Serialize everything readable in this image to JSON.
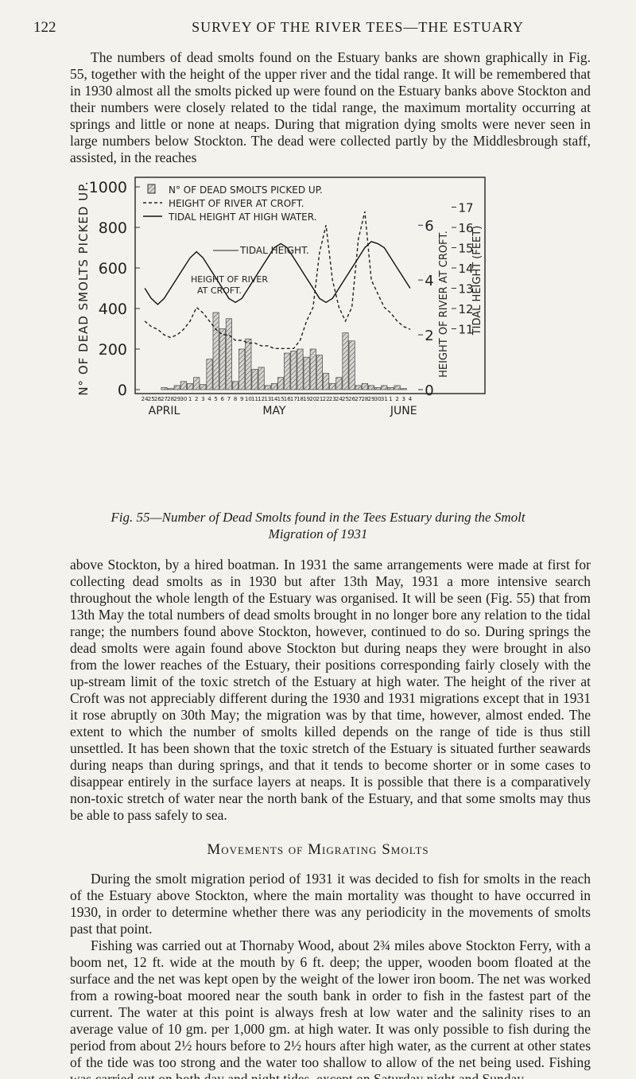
{
  "header": {
    "page": 122,
    "title": "SURVEY OF THE RIVER TEES—THE ESTUARY"
  },
  "paragraphs_before": [
    "The numbers of dead smolts found on the Estuary banks are shown graphically in Fig. 55, together with the height of the upper river and the tidal range. It will be remembered that in 1930 almost all the smolts picked up were found on the Estuary banks above Stockton and their numbers were closely related to the tidal range, the maximum mortality occurring at springs and little or none at neaps. During that migration dying smolts were never seen in large numbers below Stockton. The dead were collected partly by the Middlesbrough staff, assisted, in the reaches"
  ],
  "chart_data": {
    "type": "bar",
    "y_label": "N° OF DEAD SMOLTS PICKED UP.",
    "y2_label": "TIDAL HEIGHT (FEET)",
    "y3_label": "HEIGHT OF RIVER AT CROFT.",
    "categories": [
      "24",
      "25",
      "26",
      "27",
      "28",
      "29",
      "30",
      "1",
      "2",
      "3",
      "4",
      "5",
      "6",
      "7",
      "8",
      "9",
      "10",
      "11",
      "12",
      "13",
      "14",
      "15",
      "16",
      "17",
      "18",
      "19",
      "20",
      "21",
      "22",
      "23",
      "24",
      "25",
      "26",
      "27",
      "28",
      "29",
      "30",
      "31",
      "1",
      "2",
      "3",
      "4"
    ],
    "month_labels": [
      "APRIL",
      "MAY",
      "JUNE"
    ],
    "annotations": [
      [
        "TIDAL HEIGHT."
      ],
      [
        "HEIGHT OF RIVER",
        "AT CROFT."
      ]
    ],
    "series": [
      {
        "name": "N° OF DEAD SMOLTS PICKED UP.",
        "color": "#555555",
        "values": [
          0,
          0,
          0,
          10,
          5,
          20,
          40,
          30,
          60,
          25,
          150,
          380,
          300,
          350,
          40,
          200,
          250,
          100,
          110,
          20,
          30,
          60,
          180,
          190,
          200,
          160,
          200,
          170,
          80,
          30,
          60,
          280,
          240,
          20,
          30,
          20,
          10,
          20,
          10,
          20,
          5,
          0
        ]
      },
      {
        "name": "HEIGHT OF RIVER AT CROFT.",
        "type": "line",
        "axis": "y3",
        "color": "#222222",
        "dashed": true,
        "values": [
          2.5,
          2.3,
          2.2,
          2,
          1.9,
          2,
          2.2,
          2.5,
          3,
          2.8,
          2.5,
          2.2,
          2,
          2,
          1.8,
          1.8,
          1.7,
          1.7,
          1.6,
          1.6,
          1.5,
          1.5,
          1.5,
          1.5,
          1.8,
          2.5,
          3,
          5,
          6,
          4,
          3,
          2.5,
          3,
          5.5,
          6.5,
          4,
          3.5,
          3,
          2.8,
          2.5,
          2.3,
          2.2
        ]
      },
      {
        "name": "TIDAL HEIGHT AT HIGH WATER.",
        "type": "line",
        "axis": "y2",
        "color": "#111111",
        "dashed": false,
        "values": [
          13,
          12.5,
          12.2,
          12.5,
          13,
          13.5,
          14,
          14.5,
          14.8,
          14.5,
          14,
          13.5,
          13,
          12.5,
          12.3,
          12.5,
          13,
          13.5,
          14,
          14.5,
          15,
          15.2,
          15,
          14.5,
          14,
          13.5,
          13,
          12.5,
          12.3,
          12.5,
          13,
          13.5,
          14,
          14.5,
          15,
          15.3,
          15.2,
          15,
          14.5,
          14,
          13.5,
          13
        ]
      }
    ],
    "ylim": [
      0,
      1000
    ],
    "yticks": [
      0,
      200,
      400,
      600,
      800,
      1000
    ],
    "y2lim": [
      8,
      18
    ],
    "y2ticks": [
      11,
      12,
      13,
      14,
      15,
      16,
      17
    ],
    "y3lim": [
      0,
      7.4
    ],
    "y3ticks": [
      0,
      2,
      4,
      6
    ]
  },
  "caption": [
    "Fig. 55—Number of Dead Smolts found in the Tees Estuary during the Smolt",
    "Migration of 1931"
  ],
  "paragraphs_after": [
    "above Stockton, by a hired boatman. In 1931 the same arrangements were made at first for collecting dead smolts as in 1930 but after 13th May, 1931 a more intensive search throughout the whole length of the Estuary was organised. It will be seen (Fig. 55) that from 13th May the total numbers of dead smolts brought in no longer bore any relation to the tidal range; the numbers found above Stockton, however, continued to do so. During springs the dead smolts were again found above Stockton but during neaps they were brought in also from the lower reaches of the Estuary, their positions corresponding fairly closely with the up-stream limit of the toxic stretch of the Estuary at high water. The height of the river at Croft was not appreciably different during the 1930 and 1931 migrations except that in 1931 it rose abruptly on 30th May; the migration was by that time, however, almost ended. The extent to which the number of smolts killed depends on the range of tide is thus still unsettled. It has been shown that the toxic stretch of the Estuary is situated further seawards during neaps than during springs, and that it tends to become shorter or in some cases to disappear entirely in the surface layers at neaps. It is possible that there is a comparatively non-toxic stretch of water near the north bank of the Estuary, and that some smolts may thus be able to pass safely to sea."
  ],
  "section": {
    "heading": "Movements of Migrating Smolts",
    "paragraphs": [
      "During the smolt migration period of 1931 it was decided to fish for smolts in the reach of the Estuary above Stockton, where the main mortality was thought to have occurred in 1930, in order to determine whether there was any periodicity in the movements of smolts past that point.",
      "Fishing was carried out at Thornaby Wood, about 2¾ miles above Stockton Ferry, with a boom net, 12 ft. wide at the mouth by 6 ft. deep; the upper, wooden boom floated at the surface and the net was kept open by the weight of the lower iron boom. The net was worked from a rowing-boat moored near the south bank in order to fish in the fastest part of the current. The water at this point is always fresh at low water and the salinity rises to an average value of 10 gm. per 1,000 gm. at high water. It was only possible to fish during the period from about 2½ hours before to 2½ hours after high water, as the current at other states of the tide was too strong and the water too shallow to allow of the net being used. Fishing was carried out on both day and night tides, except on Saturday night and Sunday."
    ]
  }
}
